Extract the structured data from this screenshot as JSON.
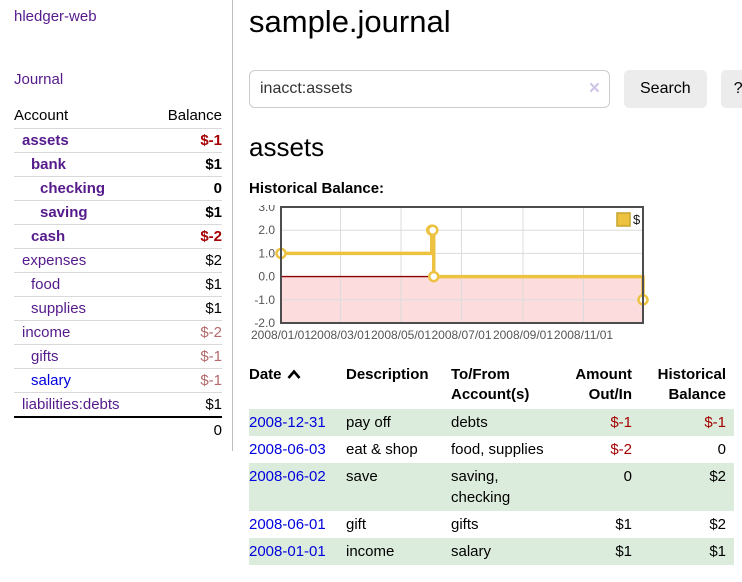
{
  "app": {
    "brand": "hledger-web",
    "nav": {
      "journal": "Journal"
    }
  },
  "sidebar": {
    "accounts_header": {
      "account": "Account",
      "balance": "Balance"
    },
    "accounts": [
      {
        "name": "assets",
        "level": 0,
        "balance": "$-1",
        "bold": true,
        "tone": "neg-strong",
        "variant": "purple"
      },
      {
        "name": "bank",
        "level": 1,
        "balance": "$1",
        "bold": true,
        "tone": "",
        "variant": "purple"
      },
      {
        "name": "checking",
        "level": 2,
        "balance": "0",
        "bold": true,
        "tone": "",
        "variant": "purple"
      },
      {
        "name": "saving",
        "level": 2,
        "balance": "$1",
        "bold": true,
        "tone": "",
        "variant": "purple"
      },
      {
        "name": "cash",
        "level": 1,
        "balance": "$-2",
        "bold": true,
        "tone": "neg-strong",
        "variant": "purple"
      },
      {
        "name": "expenses",
        "level": 0,
        "balance": "$2",
        "bold": false,
        "tone": "",
        "variant": "purple"
      },
      {
        "name": "food",
        "level": 1,
        "balance": "$1",
        "bold": false,
        "tone": "",
        "variant": "purple"
      },
      {
        "name": "supplies",
        "level": 1,
        "balance": "$1",
        "bold": false,
        "tone": "",
        "variant": "purple"
      },
      {
        "name": "income",
        "level": 0,
        "balance": "$-2",
        "bold": false,
        "tone": "neg-soft",
        "variant": "purple"
      },
      {
        "name": "gifts",
        "level": 1,
        "balance": "$-1",
        "bold": false,
        "tone": "neg-soft",
        "variant": "purple"
      },
      {
        "name": "salary",
        "level": 1,
        "balance": "$-1",
        "bold": false,
        "tone": "neg-soft",
        "variant": "blue"
      },
      {
        "name": "liabilities:debts",
        "level": 0,
        "balance": "$1",
        "bold": false,
        "tone": "",
        "variant": "purple"
      }
    ],
    "total": "0"
  },
  "header": {
    "title": "sample.journal"
  },
  "search": {
    "value": "inacct:assets",
    "clear_icon": "×",
    "button_label": "Search",
    "help_label": "?"
  },
  "account_page": {
    "heading": "assets",
    "chart_label": "Historical Balance:"
  },
  "chart_data": {
    "type": "line",
    "step": true,
    "title": "Historical Balance",
    "xlim": [
      "2008-01-01",
      "2008-12-31"
    ],
    "ylim": [
      -2,
      3
    ],
    "x_ticks": [
      {
        "date": "2008-01-01",
        "label": "2008/01/01"
      },
      {
        "date": "2008-03-01",
        "label": "2008/03/01"
      },
      {
        "date": "2008-05-01",
        "label": "2008/05/01"
      },
      {
        "date": "2008-07-01",
        "label": "2008/07/01"
      },
      {
        "date": "2008-09-01",
        "label": "2008/09/01"
      },
      {
        "date": "2008-11-01",
        "label": "2008/11/01"
      }
    ],
    "y_ticks": [
      {
        "value": 3,
        "label": "3.0"
      },
      {
        "value": 2,
        "label": "2.0"
      },
      {
        "value": 1,
        "label": "1.0"
      },
      {
        "value": 0,
        "label": "0.0"
      },
      {
        "value": -1,
        "label": "-1.0"
      },
      {
        "value": -2,
        "label": "-2.0"
      }
    ],
    "series": [
      {
        "name": "$",
        "color": "#edc240",
        "points": [
          [
            "2008-01-01",
            1
          ],
          [
            "2008-06-01",
            2
          ],
          [
            "2008-06-02",
            2
          ],
          [
            "2008-06-03",
            0
          ],
          [
            "2008-12-31",
            -1
          ]
        ]
      }
    ],
    "legend": {
      "label": "$",
      "swatch_color": "#edc240",
      "position": "top-right"
    },
    "grid": true,
    "grid_color": "#dcdcdc",
    "border_color": "#4d4d4d",
    "zero_line_color": "#8b0000",
    "negative_region_color": "#fcdcdc"
  },
  "register_table": {
    "columns": [
      {
        "label": "Date",
        "sort": "ascending",
        "align": "left"
      },
      {
        "label": "Description",
        "align": "left"
      },
      {
        "label": "To/From Account(s)",
        "align": "left"
      },
      {
        "label": "Amount Out/In",
        "align": "right"
      },
      {
        "label": "Historical Balance",
        "align": "right"
      }
    ],
    "rows": [
      {
        "date": "2008-12-31",
        "description": "pay off",
        "accounts": "debts",
        "amount": "$-1",
        "amount_negative": true,
        "balance": "$-1",
        "balance_negative": true
      },
      {
        "date": "2008-06-03",
        "description": "eat & shop",
        "accounts": "food, supplies",
        "amount": "$-2",
        "amount_negative": true,
        "balance": "0",
        "balance_negative": false
      },
      {
        "date": "2008-06-02",
        "description": "save",
        "accounts": "saving, checking",
        "amount": "0",
        "amount_negative": false,
        "balance": "$2",
        "balance_negative": false
      },
      {
        "date": "2008-06-01",
        "description": "gift",
        "accounts": "gifts",
        "amount": "$1",
        "amount_negative": false,
        "balance": "$2",
        "balance_negative": false
      },
      {
        "date": "2008-01-01",
        "description": "income",
        "accounts": "salary",
        "amount": "$1",
        "amount_negative": false,
        "balance": "$1",
        "balance_negative": false
      }
    ]
  },
  "colors": {
    "link_purple": "#551a8b",
    "link_blue": "#0000dd",
    "negative_strong": "#a40000",
    "negative_soft": "#b36a6a",
    "row_stripe_green": "#dcecdc",
    "series_yellow": "#edc240"
  },
  "icons": {
    "clear_search_icon": "×",
    "sort_ascending_icon": "chevron-up"
  }
}
